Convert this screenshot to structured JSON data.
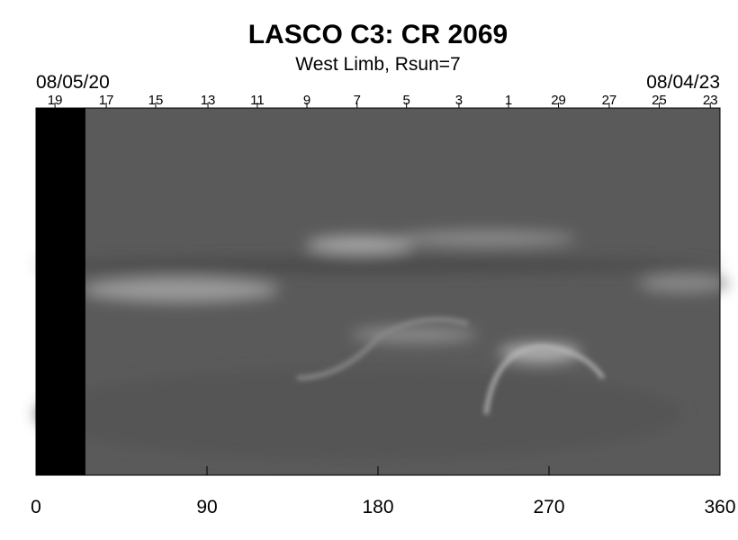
{
  "chart_data": {
    "type": "synoptic-map",
    "title": "LASCO C3: CR 2069",
    "subtitle": "West Limb, Rsun=7",
    "start_date": "08/05/20",
    "end_date": "08/04/23",
    "xlim": [
      0,
      360
    ],
    "xticks": [
      0,
      90,
      180,
      270,
      360
    ],
    "day_ticks": {
      "labels": [
        19,
        17,
        15,
        13,
        11,
        9,
        7,
        5,
        3,
        1,
        29,
        27,
        25,
        23
      ],
      "positions": [
        10,
        37,
        63,
        90.5,
        116.5,
        142.6,
        169,
        195,
        222.6,
        248.7,
        275,
        301.7,
        328,
        354.9
      ]
    },
    "no_data_x": [
      0,
      26
    ]
  }
}
